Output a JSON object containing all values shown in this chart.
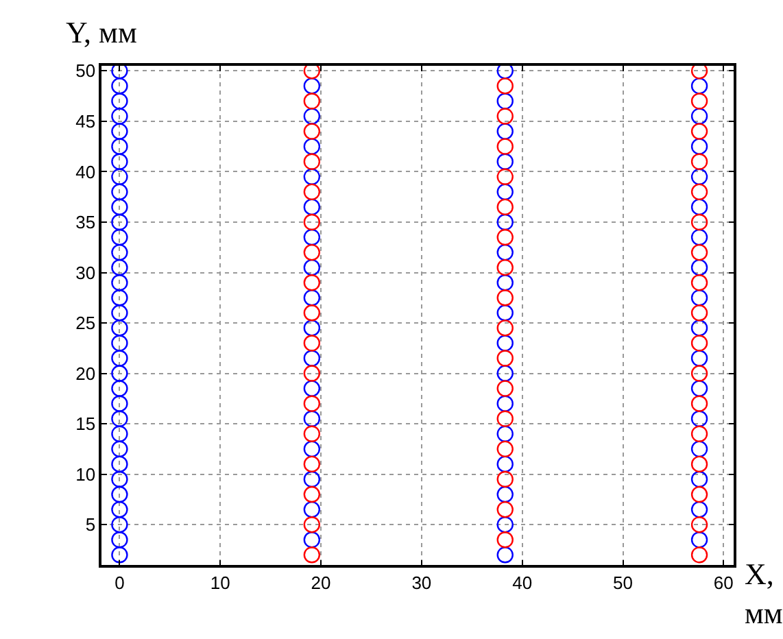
{
  "chart_data": {
    "type": "scatter",
    "xlabel": "X, мм",
    "ylabel": "Y, мм",
    "marker": "circle",
    "grid": true,
    "xlim": [
      -1.8,
      61
    ],
    "ylim": [
      1,
      50.5
    ],
    "xticks": [
      0,
      10,
      20,
      30,
      40,
      50,
      60
    ],
    "yticks": [
      5,
      10,
      15,
      20,
      25,
      30,
      35,
      40,
      45,
      50
    ],
    "series": [
      {
        "color": "#0000ff",
        "x": [
          0,
          0,
          0,
          0,
          0,
          0,
          0,
          0,
          0,
          0,
          0,
          0,
          0,
          0,
          0,
          0,
          0,
          0,
          0,
          0,
          0,
          0,
          0,
          0,
          0,
          0,
          0,
          0,
          0,
          0,
          0,
          0,
          0,
          19.1,
          19.1,
          19.1,
          19.1,
          19.1,
          19.1,
          19.1,
          19.1,
          19.1,
          19.1,
          19.1,
          19.1,
          19.1,
          19.1,
          19.1,
          19.1,
          38.3,
          38.3,
          38.3,
          38.3,
          38.3,
          38.3,
          38.3,
          38.3,
          38.3,
          38.3,
          38.3,
          38.3,
          38.3,
          38.3,
          38.3,
          38.3,
          38.3,
          57.6,
          57.6,
          57.6,
          57.6,
          57.6,
          57.6,
          57.6,
          57.6,
          57.6,
          57.6,
          57.6,
          57.6,
          57.6,
          57.6,
          57.6,
          57.6
        ],
        "values": [
          50,
          48.5,
          47,
          45.5,
          44,
          42.5,
          41,
          39.5,
          38,
          36.5,
          35,
          33.5,
          32,
          30.5,
          29,
          27.5,
          26,
          24.5,
          23,
          21.5,
          20,
          18.5,
          17,
          15.5,
          14,
          12.5,
          11,
          9.5,
          8,
          6.5,
          5,
          3.5,
          2,
          48.5,
          45.5,
          42.5,
          39.5,
          36.5,
          33.5,
          30.5,
          27.5,
          24.5,
          21.5,
          18.5,
          15.5,
          12.5,
          9.5,
          6.5,
          3.5,
          50,
          47,
          44,
          41,
          38,
          35,
          32,
          29,
          26,
          23,
          20,
          17,
          14,
          11,
          8,
          5,
          2,
          48.5,
          45.5,
          42.5,
          39.5,
          36.5,
          33.5,
          30.5,
          27.5,
          24.5,
          21.5,
          18.5,
          15.5,
          12.5,
          9.5,
          6.5,
          3.5
        ]
      },
      {
        "color": "#ff0000",
        "x": [
          19.1,
          19.1,
          19.1,
          19.1,
          19.1,
          19.1,
          19.1,
          19.1,
          19.1,
          19.1,
          19.1,
          19.1,
          19.1,
          19.1,
          19.1,
          19.1,
          19.1,
          38.3,
          38.3,
          38.3,
          38.3,
          38.3,
          38.3,
          38.3,
          38.3,
          38.3,
          38.3,
          38.3,
          38.3,
          38.3,
          38.3,
          38.3,
          38.3,
          57.6,
          57.6,
          57.6,
          57.6,
          57.6,
          57.6,
          57.6,
          57.6,
          57.6,
          57.6,
          57.6,
          57.6,
          57.6,
          57.6,
          57.6,
          57.6,
          57.6
        ],
        "values": [
          50,
          47,
          44,
          41,
          38,
          35,
          32,
          29,
          26,
          23,
          20,
          17,
          14,
          11,
          8,
          5,
          2,
          48.5,
          45.5,
          42.5,
          39.5,
          36.5,
          33.5,
          30.5,
          27.5,
          24.5,
          21.5,
          18.5,
          15.5,
          12.5,
          9.5,
          6.5,
          3.5,
          50,
          47,
          44,
          41,
          38,
          35,
          32,
          29,
          26,
          23,
          20,
          17,
          14,
          11,
          8,
          5,
          2
        ]
      }
    ]
  }
}
